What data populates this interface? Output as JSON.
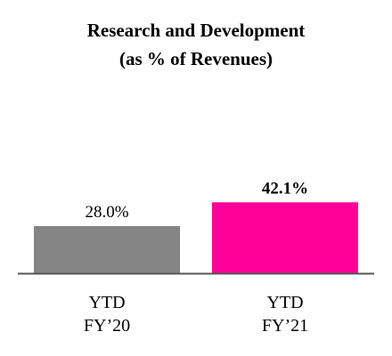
{
  "chart_data": {
    "type": "bar",
    "title": [
      "Research and Development",
      "(as % of Revenues)"
    ],
    "categories": [
      [
        "YTD",
        "FY’20"
      ],
      [
        "YTD",
        "FY’21"
      ]
    ],
    "values": [
      28.0,
      42.1
    ],
    "value_labels": [
      "28.0%",
      "42.1%"
    ],
    "value_label_bold": [
      false,
      true
    ],
    "colors": [
      "#858585",
      "#ff0099"
    ],
    "axis_color": "#555555",
    "ylim": [
      0,
      50
    ],
    "grid": false,
    "legend": "none"
  }
}
